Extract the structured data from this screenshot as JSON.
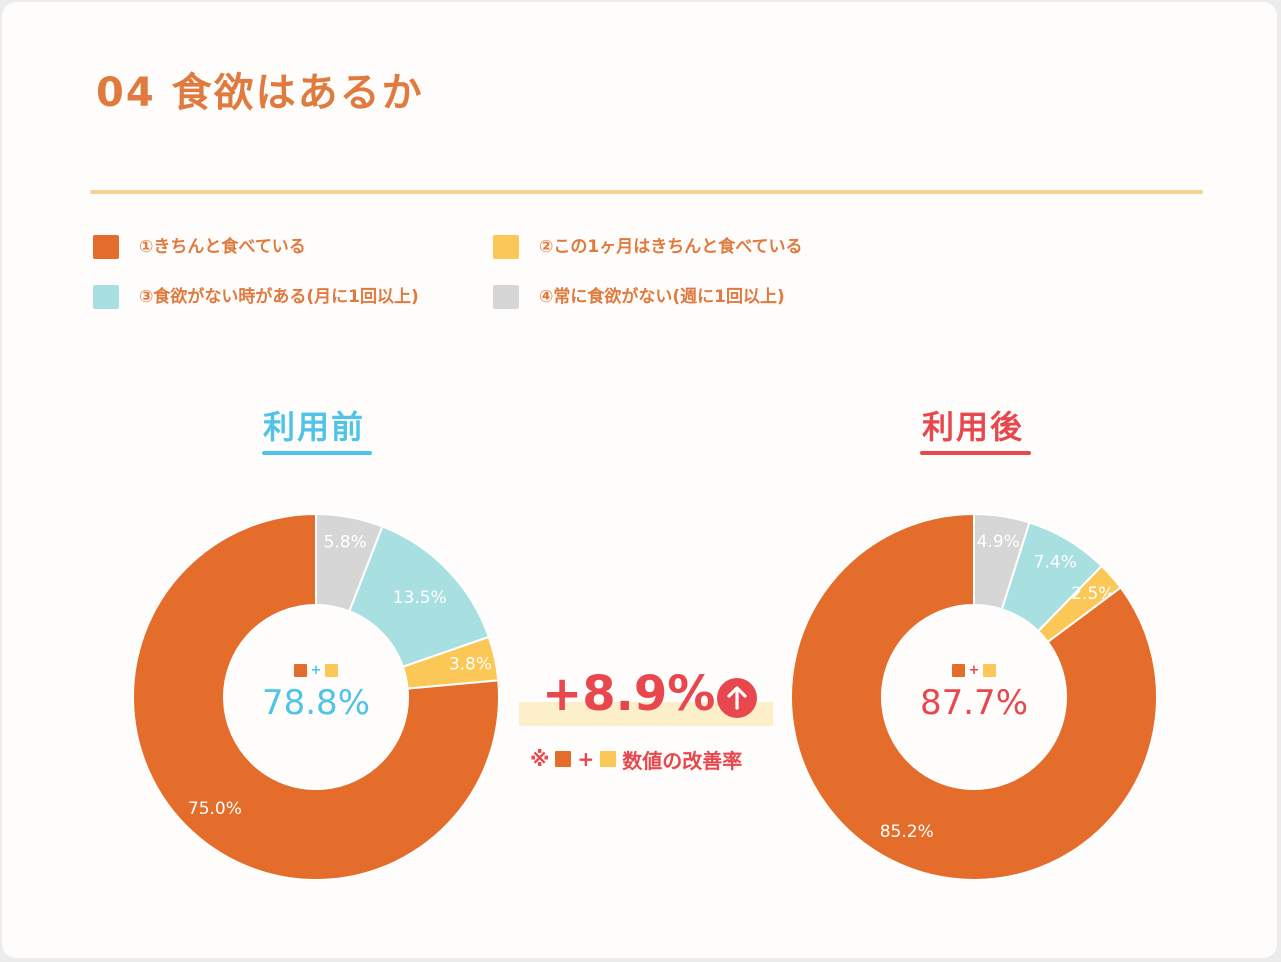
{
  "title": "04 食欲はあるか",
  "legend": [
    {
      "label": "①きちんと食べている",
      "color": "#e56d2c"
    },
    {
      "label": "②この1ヶ月はきちんと食べている",
      "color": "#fbc857"
    },
    {
      "label": "③食欲がない時がある(月に1回以上)",
      "color": "#a8dfe0"
    },
    {
      "label": "④常に食欲がない(週に1回以上)",
      "color": "#d6d6d6"
    }
  ],
  "colors": {
    "title": "#e07a3f",
    "before_accent": "#4fc3e8",
    "after_accent": "#e8484d",
    "divider": "#f7d18f",
    "highlight": "#fdefc9"
  },
  "before": {
    "heading": "利用前",
    "center_value": "78.8%",
    "plus": "+"
  },
  "after": {
    "heading": "利用後",
    "center_value": "87.7%",
    "plus": "+"
  },
  "comparison": {
    "delta": "+8.9%",
    "note_prefix": "※",
    "note_plus": "+",
    "note_text": "数値の改善率",
    "icon": "up-arrow-icon"
  },
  "chart_data": [
    {
      "type": "pie",
      "variant": "donut",
      "title": "利用前",
      "direction": "clockwise-from-top",
      "slices": [
        {
          "category": "④常に食欲がない(週に1回以上)",
          "value": 5.8,
          "label": "5.8%",
          "color": "#d6d6d6"
        },
        {
          "category": "③食欲がない時がある(月に1回以上)",
          "value": 13.5,
          "label": "13.5%",
          "color": "#a8dfe0"
        },
        {
          "category": "②この1ヶ月はきちんと食べている",
          "value": 3.8,
          "label": "3.8%",
          "color": "#fbc857"
        },
        {
          "category": "①きちんと食べている",
          "value": 75.0,
          "label": "75.0%",
          "color": "#e56d2c"
        }
      ]
    },
    {
      "type": "pie",
      "variant": "donut",
      "title": "利用後",
      "direction": "clockwise-from-top",
      "slices": [
        {
          "category": "④常に食欲がない(週に1回以上)",
          "value": 4.9,
          "label": "4.9%",
          "color": "#d6d6d6"
        },
        {
          "category": "③食欲がない時がある(月に1回以上)",
          "value": 7.4,
          "label": "7.4%",
          "color": "#a8dfe0"
        },
        {
          "category": "②この1ヶ月はきちんと食べている",
          "value": 2.5,
          "label": "2.5%",
          "color": "#fbc857"
        },
        {
          "category": "①きちんと食べている",
          "value": 85.2,
          "label": "85.2%",
          "color": "#e56d2c"
        }
      ]
    }
  ]
}
